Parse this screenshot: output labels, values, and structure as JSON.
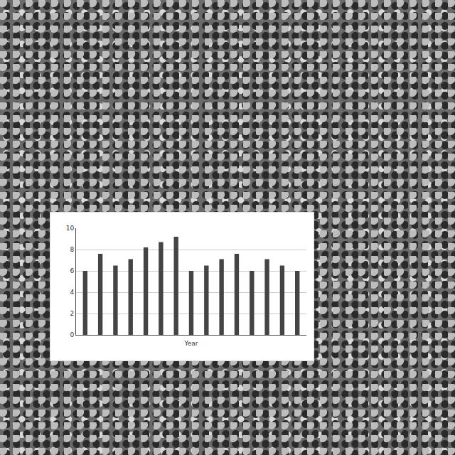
{
  "chart_data": {
    "type": "bar",
    "x_label": "Year",
    "categories": [
      null,
      null,
      null,
      null,
      null,
      null,
      null,
      null,
      null,
      null,
      null,
      null,
      null,
      null,
      null
    ],
    "values": [
      6,
      7.6,
      6.5,
      7.1,
      8.2,
      8.7,
      9.2,
      6,
      6.5,
      7.1,
      7.6,
      6,
      7.1,
      6.5,
      6
    ],
    "color": "#444444",
    "ylim": [
      0,
      10
    ],
    "yticks": [
      0,
      2,
      4,
      6,
      8,
      10
    ],
    "grid": true,
    "tick_labels": "y"
  }
}
